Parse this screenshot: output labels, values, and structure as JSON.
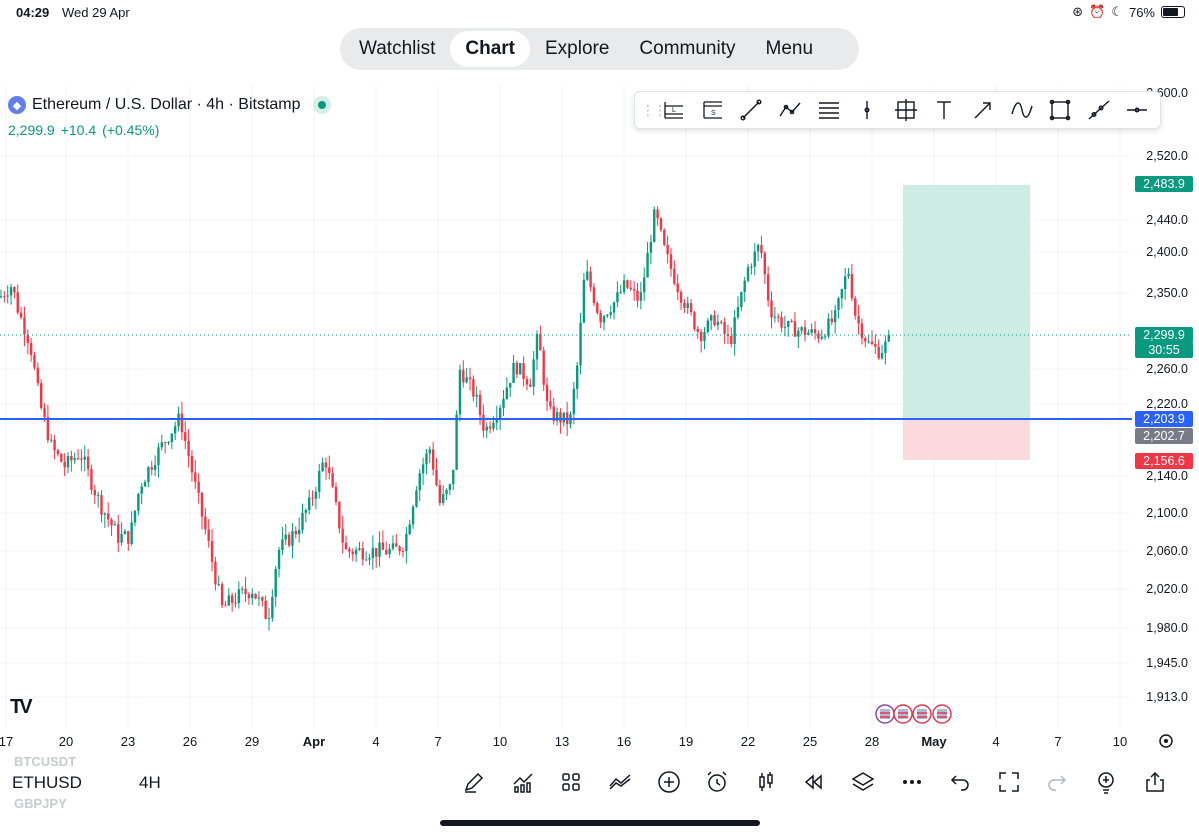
{
  "status_bar": {
    "time": "04:29",
    "date": "Wed 29 Apr",
    "battery": "76%",
    "battery_level": 0.76
  },
  "nav": {
    "tabs": [
      {
        "label": "Watchlist",
        "active": false
      },
      {
        "label": "Chart",
        "active": true
      },
      {
        "label": "Explore",
        "active": false
      },
      {
        "label": "Community",
        "active": false
      },
      {
        "label": "Menu",
        "active": false
      }
    ]
  },
  "symbol": {
    "title": "Ethereum / U.S. Dollar · 4h · Bitstamp",
    "last": "2,299.9",
    "change": "+10.4",
    "change_pct": "(+0.45%)"
  },
  "drawing_tools": [
    "long-position-icon",
    "short-position-icon",
    "trend-line-icon",
    "path-icon",
    "fib-retracement-icon",
    "vertical-line-icon",
    "crosshair-icon",
    "text-icon",
    "arrow-icon",
    "curve-icon",
    "rectangle-icon",
    "ray-icon",
    "horizontal-ray-icon"
  ],
  "price_axis": {
    "ticks": [
      "2,520.0",
      "2,440.0",
      "2,400.0",
      "2,350.0",
      "2,260.0",
      "2,220.0",
      "2,140.0",
      "2,100.0",
      "2,060.0",
      "2,020.0",
      "1,980.0",
      "1,945.0",
      "1,913.0"
    ],
    "top_partial": "2,600.0"
  },
  "price_labels": {
    "target": "2,483.9",
    "current": "2,299.9",
    "countdown": "30:55",
    "entry": "2,203.9",
    "entry2": "2,202.7",
    "stop": "2,156.6"
  },
  "time_axis": {
    "labels": [
      "17",
      "20",
      "23",
      "26",
      "29",
      "Apr",
      "4",
      "7",
      "10",
      "13",
      "16",
      "19",
      "22",
      "25",
      "28",
      "May",
      "4",
      "7",
      "10"
    ]
  },
  "colors": {
    "up": "#089981",
    "down": "#f23645",
    "line": "#2962ff",
    "profit_zone": "#cdece4",
    "loss_zone": "#fadadd"
  },
  "bottom_bar": {
    "symbol": "ETHUSD",
    "interval": "4H",
    "ghost_above": "BTCUSDT",
    "ghost_below": "GBPJPY",
    "icons": [
      "drawing-pen-icon",
      "indicators-icon",
      "layouts-icon",
      "compare-icon",
      "add-icon",
      "alert-icon",
      "chart-type-icon",
      "replay-icon",
      "layers-icon",
      "more-icon",
      "undo-icon",
      "fullscreen-icon",
      "redo-icon",
      "hint-icon",
      "share-icon"
    ]
  }
}
